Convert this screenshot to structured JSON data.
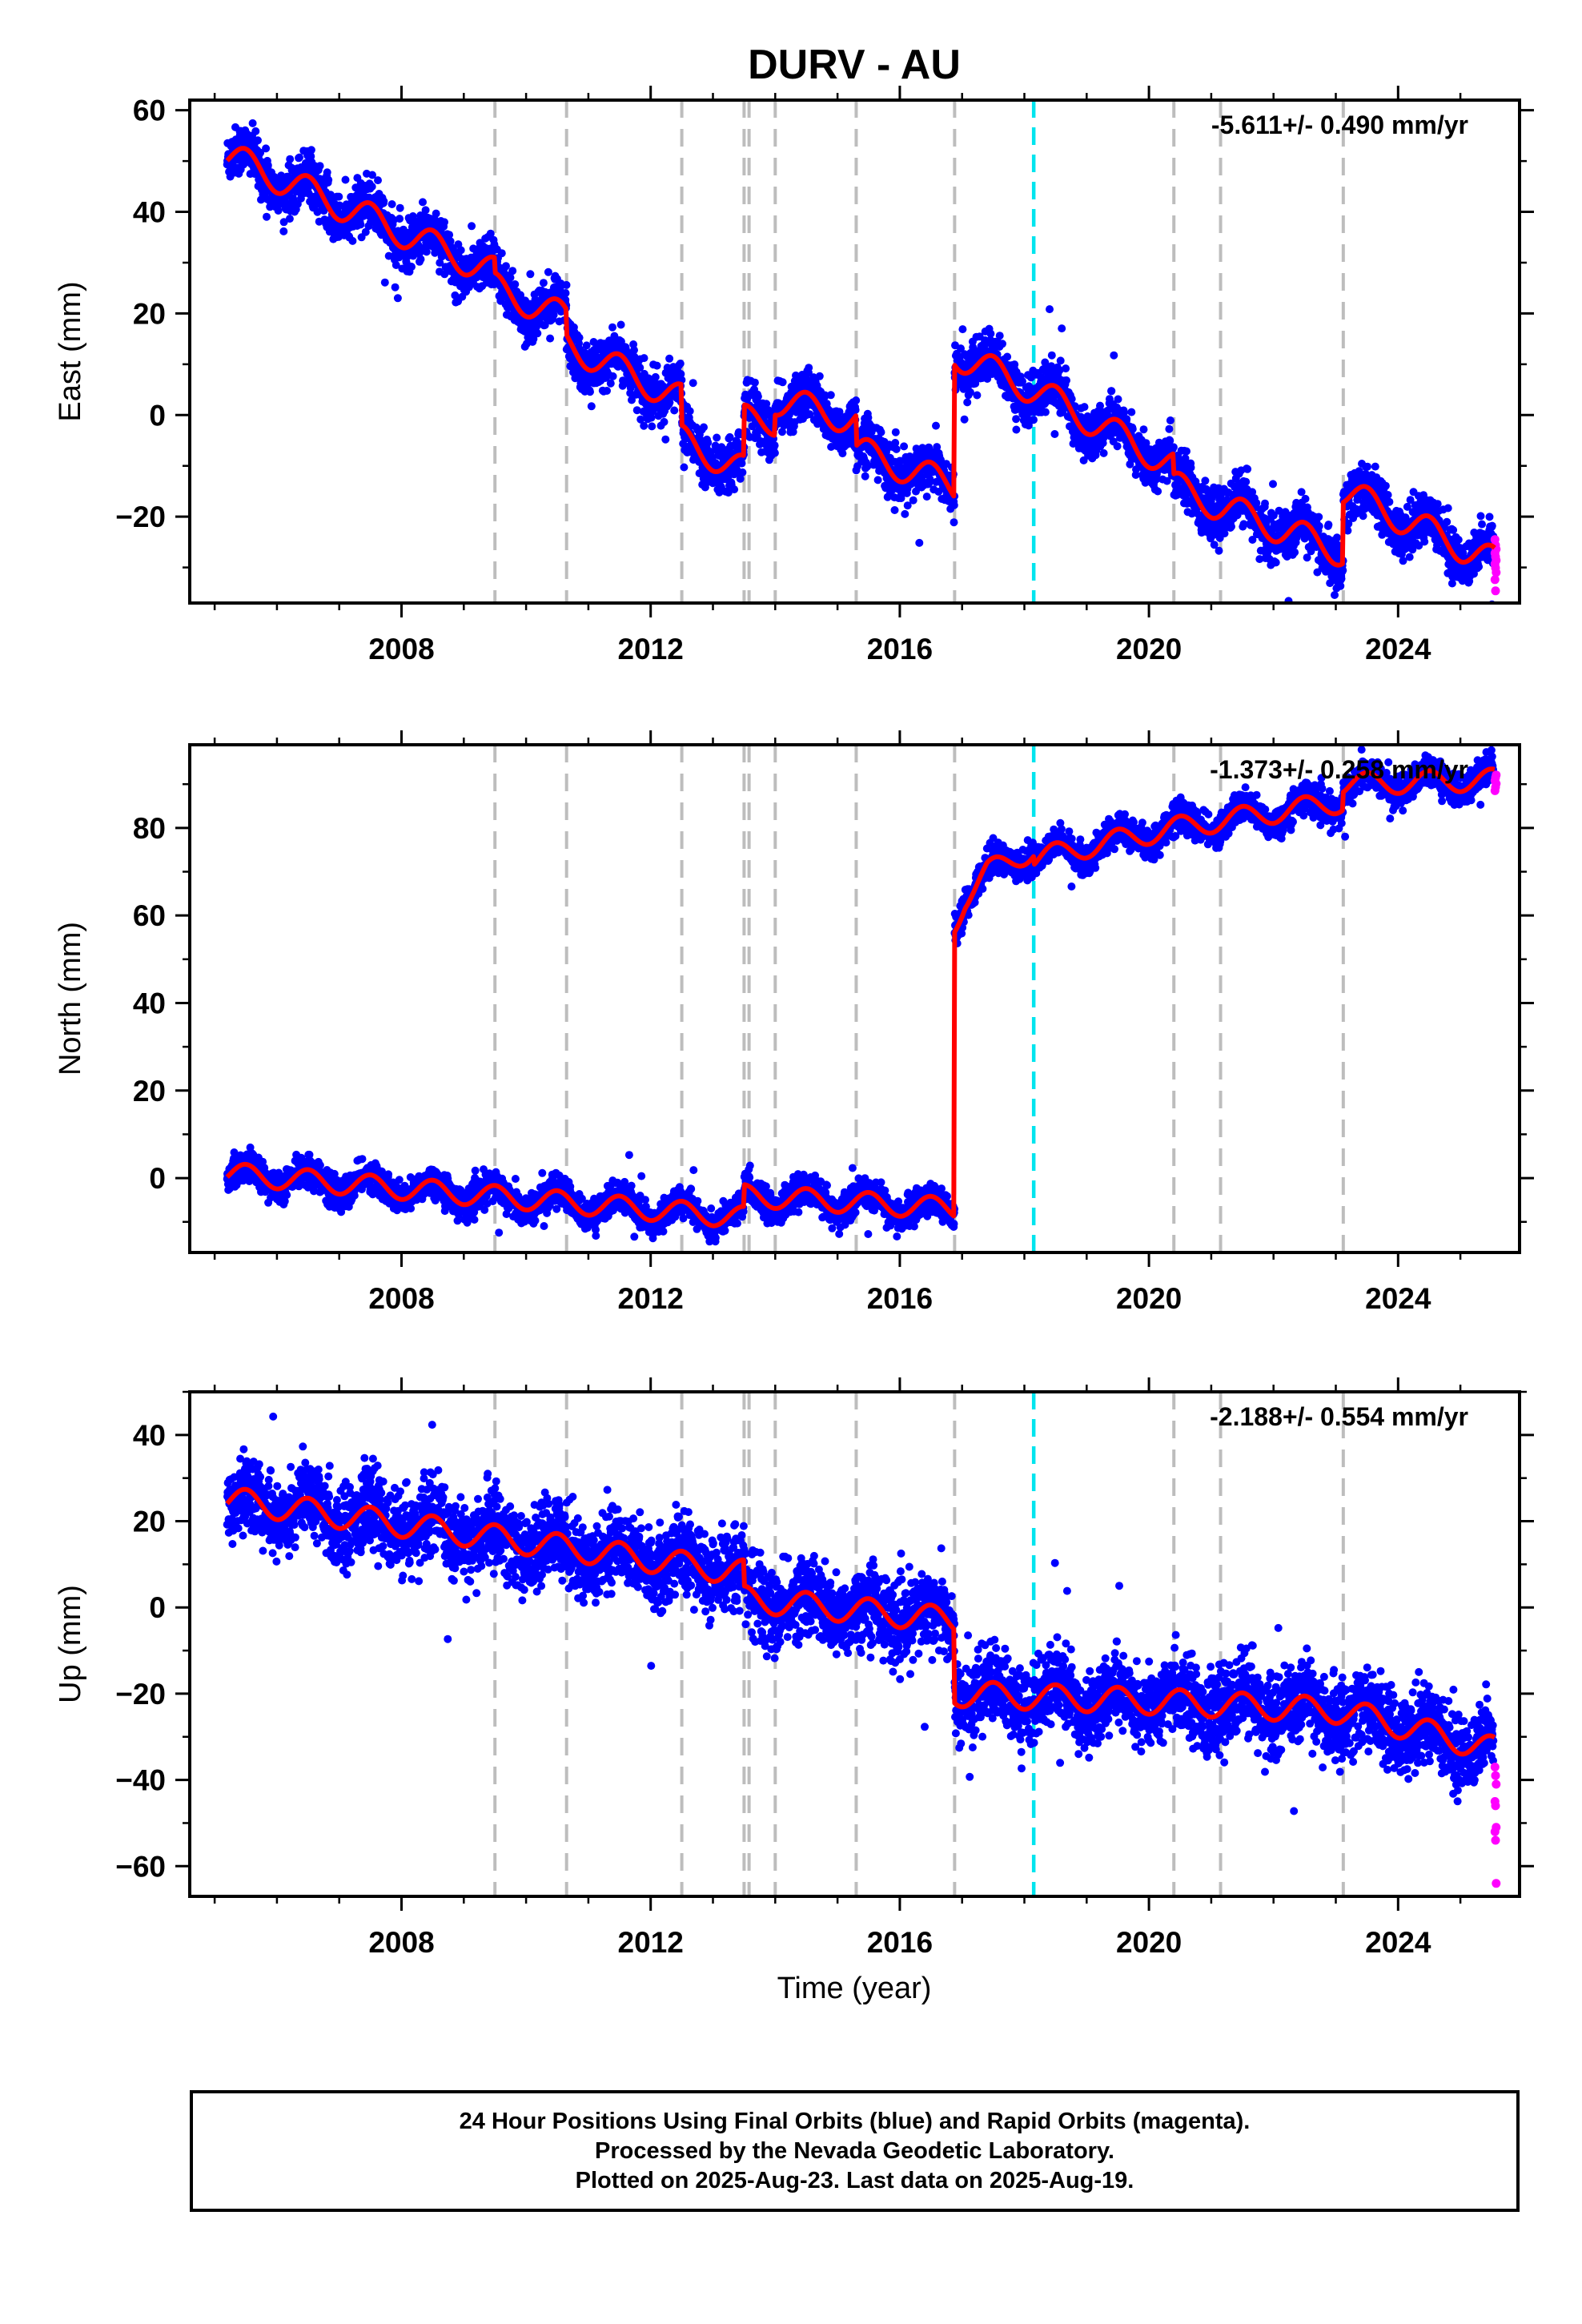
{
  "figure": {
    "title": "DURV - AU",
    "xlabel": "Time (year)",
    "caption_lines": [
      "24 Hour Positions Using Final Orbits (blue) and Rapid Orbits (magenta).",
      "Processed by the Nevada Geodetic Laboratory.",
      "Plotted on 2025-Aug-23. Last data on 2025-Aug-19."
    ]
  },
  "colors": {
    "final_orbit_points": "#0000ff",
    "rapid_orbit_points": "#ff00ff",
    "model_fit": "#ff0000",
    "equipment_change_lines": "#bdbdbd",
    "special_event_line": "#00e5ee"
  },
  "chart_data": [
    {
      "type": "scatter",
      "name": "east",
      "ylabel": "East (mm)",
      "rate_label": "-5.611+/- 0.490 mm/yr",
      "xlim": [
        2004.6,
        2025.95
      ],
      "ylim": [
        -37,
        62
      ],
      "xticks": [
        2008,
        2012,
        2016,
        2020,
        2024
      ],
      "xticklabels": [
        "2008",
        "2012",
        "2016",
        "2020",
        "2024"
      ],
      "yticks": [
        -20,
        0,
        20,
        40,
        60
      ],
      "yticklabels": [
        "−20",
        "0",
        "20",
        "40",
        "60"
      ],
      "equipment_changes": [
        2009.5,
        2010.65,
        2012.5,
        2013.5,
        2013.58,
        2014.0,
        2015.3,
        2016.88,
        2020.4,
        2021.15,
        2023.12
      ],
      "special_event": 2018.15,
      "trend": [
        [
          2005.2,
          51
        ],
        [
          2009.5,
          28
        ],
        [
          2009.5,
          25
        ],
        [
          2010.65,
          19
        ],
        [
          2010.65,
          14
        ],
        [
          2012.5,
          3
        ],
        [
          2012.5,
          -5
        ],
        [
          2013.5,
          -11
        ],
        [
          2013.5,
          -1
        ],
        [
          2014.0,
          -1
        ],
        [
          2014.0,
          3
        ],
        [
          2015.3,
          -1
        ],
        [
          2015.3,
          -7
        ],
        [
          2016.88,
          -14
        ],
        [
          2016.88,
          12
        ],
        [
          2018.15,
          5
        ],
        [
          2020.4,
          -10
        ],
        [
          2020.4,
          -14
        ],
        [
          2021.15,
          -18
        ],
        [
          2023.12,
          -27
        ],
        [
          2023.12,
          -15
        ],
        [
          2025.55,
          -29
        ]
      ],
      "seasonal_amplitude": 3,
      "scatter_sd": 2.4,
      "final_orbits_end": 2025.53,
      "rapid_orbit_points": [
        -24.5,
        -25.6,
        -26.4,
        -27.2,
        -27.9,
        -28.6,
        -29.3,
        -30.1,
        -31.0,
        -32.4,
        -34.6
      ]
    },
    {
      "type": "scatter",
      "name": "north",
      "ylabel": "North (mm)",
      "rate_label": "-1.373+/- 0.258 mm/yr",
      "xlim": [
        2004.6,
        2025.95
      ],
      "ylim": [
        -17,
        99
      ],
      "xticks": [
        2008,
        2012,
        2016,
        2020,
        2024
      ],
      "xticklabels": [
        "2008",
        "2012",
        "2016",
        "2020",
        "2024"
      ],
      "yticks": [
        0,
        20,
        40,
        60,
        80
      ],
      "yticklabels": [
        "0",
        "20",
        "40",
        "60",
        "80"
      ],
      "equipment_changes": [
        2009.5,
        2010.65,
        2012.5,
        2013.5,
        2013.58,
        2014.0,
        2015.3,
        2016.88,
        2020.4,
        2021.15,
        2023.12
      ],
      "special_event": 2018.15,
      "trend": [
        [
          2005.2,
          1
        ],
        [
          2013.5,
          -9
        ],
        [
          2013.5,
          -4
        ],
        [
          2016.88,
          -7
        ],
        [
          2016.88,
          58
        ],
        [
          2017.05,
          64
        ],
        [
          2017.4,
          70
        ],
        [
          2018.15,
          75
        ],
        [
          2018.15,
          73
        ],
        [
          2020.4,
          80
        ],
        [
          2023.12,
          86
        ],
        [
          2023.12,
          90
        ],
        [
          2025.55,
          91
        ]
      ],
      "seasonal_amplitude": 2.5,
      "scatter_sd": 1.7,
      "final_orbits_end": 2025.53,
      "rapid_orbit_points": [
        88.5,
        89.3,
        90.1,
        90.8,
        91.5,
        92.1
      ]
    },
    {
      "type": "scatter",
      "name": "up",
      "ylabel": "Up (mm)",
      "rate_label": "-2.188+/- 0.554 mm/yr",
      "xlim": [
        2004.6,
        2025.95
      ],
      "ylim": [
        -67,
        50
      ],
      "xticks": [
        2008,
        2012,
        2016,
        2020,
        2024
      ],
      "xticklabels": [
        "2008",
        "2012",
        "2016",
        "2020",
        "2024"
      ],
      "yticks": [
        -60,
        -40,
        -20,
        0,
        20,
        40
      ],
      "yticklabels": [
        "−60",
        "−40",
        "−20",
        "0",
        "20",
        "40"
      ],
      "equipment_changes": [
        2009.5,
        2010.65,
        2012.5,
        2013.5,
        2013.58,
        2014.0,
        2015.3,
        2016.88,
        2020.4,
        2021.15,
        2023.12
      ],
      "special_event": 2018.15,
      "trend": [
        [
          2005.2,
          25
        ],
        [
          2013.5,
          8
        ],
        [
          2013.5,
          2
        ],
        [
          2016.88,
          -3
        ],
        [
          2016.88,
          -20
        ],
        [
          2020.4,
          -22
        ],
        [
          2023.12,
          -24
        ],
        [
          2025.55,
          -33
        ]
      ],
      "seasonal_amplitude": 3,
      "scatter_sd": 4.5,
      "final_orbits_end": 2025.53,
      "rapid_orbit_points": [
        -37,
        -39,
        -41,
        -45,
        -46,
        -51,
        -52,
        -54,
        -64
      ]
    }
  ]
}
